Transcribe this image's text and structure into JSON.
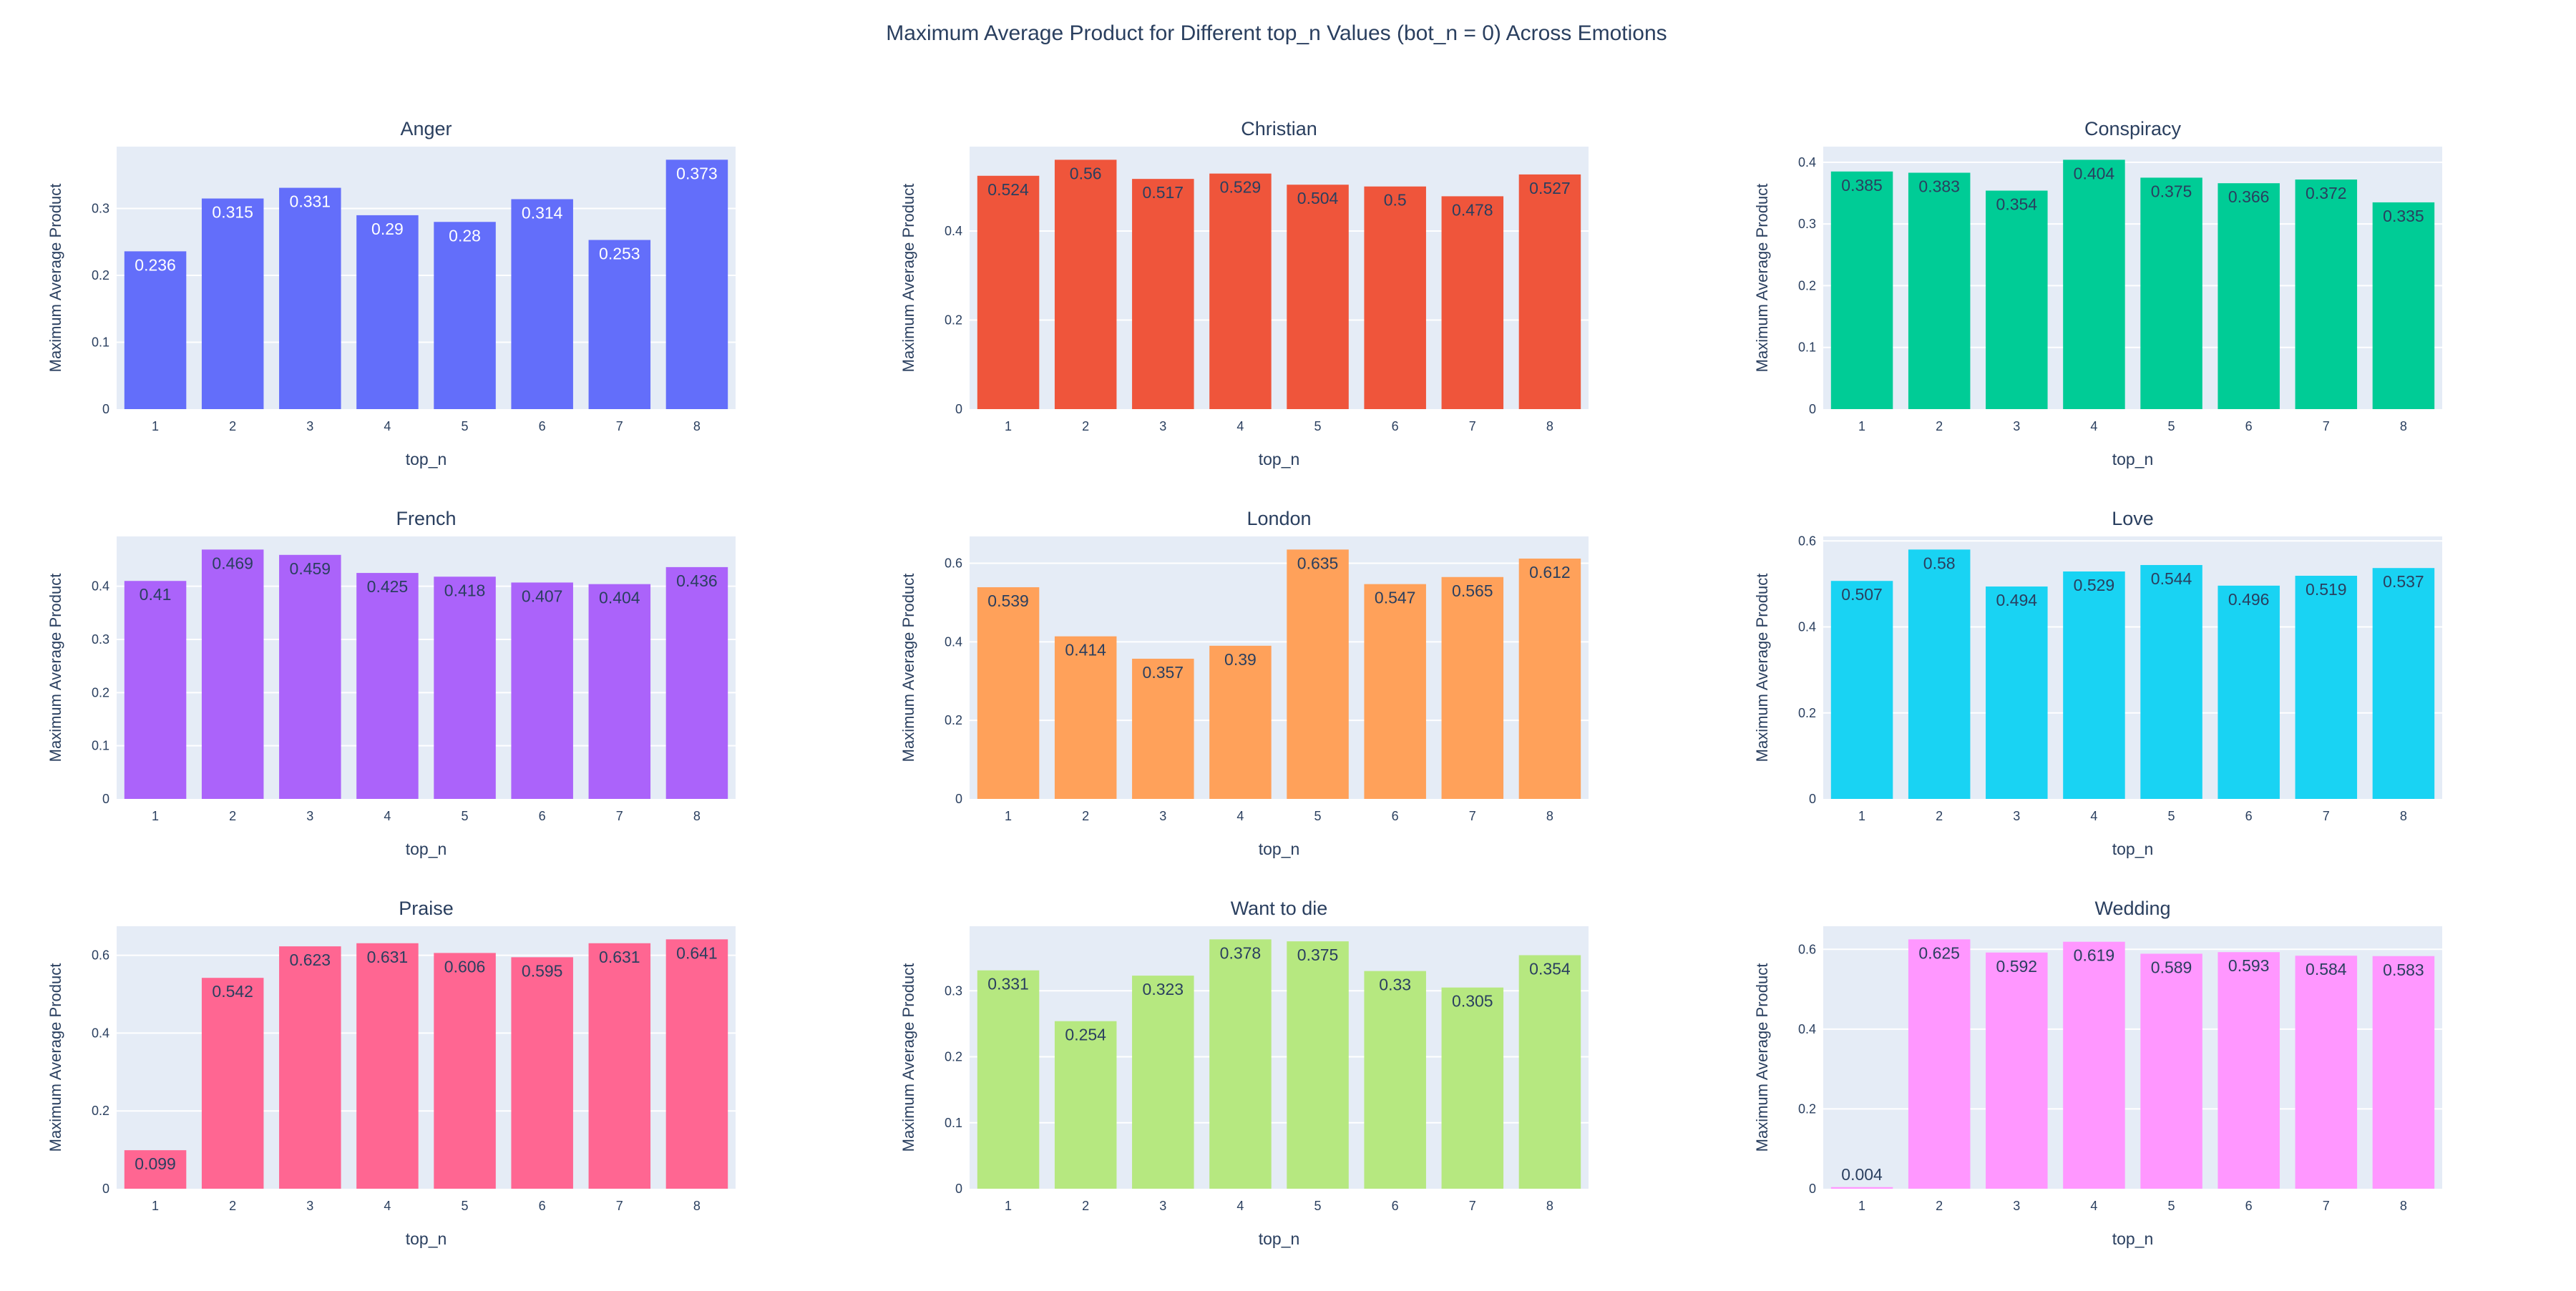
{
  "title": "Maximum Average Product for Different top_n Values (bot_n = 0) Across Emotions",
  "chart_data": [
    {
      "type": "bar",
      "title": "Anger",
      "xlabel": "top_n",
      "ylabel": "Maximum Average Product",
      "color": "#636EFA",
      "label_color": "#ffffff",
      "categories": [
        "1",
        "2",
        "3",
        "4",
        "5",
        "6",
        "7",
        "8"
      ],
      "values": [
        0.236,
        0.315,
        0.331,
        0.29,
        0.28,
        0.314,
        0.253,
        0.373
      ],
      "labels": [
        "0.236",
        "0.315",
        "0.331",
        "0.29",
        "0.28",
        "0.314",
        "0.253",
        "0.373"
      ],
      "ylim": [
        0,
        0.3926
      ],
      "yticks": [
        0,
        0.1,
        0.2,
        0.3
      ],
      "ytick_labels": [
        "0",
        "0.1",
        "0.2",
        "0.3"
      ]
    },
    {
      "type": "bar",
      "title": "Christian",
      "xlabel": "top_n",
      "ylabel": "Maximum Average Product",
      "color": "#EF553B",
      "label_color": "#2a3f5f",
      "categories": [
        "1",
        "2",
        "3",
        "4",
        "5",
        "6",
        "7",
        "8"
      ],
      "values": [
        0.524,
        0.56,
        0.517,
        0.529,
        0.504,
        0.5,
        0.478,
        0.527
      ],
      "labels": [
        "0.524",
        "0.56",
        "0.517",
        "0.529",
        "0.504",
        "0.5",
        "0.478",
        "0.527"
      ],
      "ylim": [
        0,
        0.5895
      ],
      "yticks": [
        0,
        0.2,
        0.4
      ],
      "ytick_labels": [
        "0",
        "0.2",
        "0.4"
      ]
    },
    {
      "type": "bar",
      "title": "Conspiracy",
      "xlabel": "top_n",
      "ylabel": "Maximum Average Product",
      "color": "#00CC96",
      "label_color": "#2a3f5f",
      "categories": [
        "1",
        "2",
        "3",
        "4",
        "5",
        "6",
        "7",
        "8"
      ],
      "values": [
        0.385,
        0.383,
        0.354,
        0.404,
        0.375,
        0.366,
        0.372,
        0.335
      ],
      "labels": [
        "0.385",
        "0.383",
        "0.354",
        "0.404",
        "0.375",
        "0.366",
        "0.372",
        "0.335"
      ],
      "ylim": [
        0,
        0.4253
      ],
      "yticks": [
        0,
        0.1,
        0.2,
        0.3,
        0.4
      ],
      "ytick_labels": [
        "0",
        "0.1",
        "0.2",
        "0.3",
        "0.4"
      ]
    },
    {
      "type": "bar",
      "title": "French",
      "xlabel": "top_n",
      "ylabel": "Maximum Average Product",
      "color": "#AB63FA",
      "label_color": "#2a3f5f",
      "categories": [
        "1",
        "2",
        "3",
        "4",
        "5",
        "6",
        "7",
        "8"
      ],
      "values": [
        0.41,
        0.469,
        0.459,
        0.425,
        0.418,
        0.407,
        0.404,
        0.436
      ],
      "labels": [
        "0.41",
        "0.469",
        "0.459",
        "0.425",
        "0.418",
        "0.407",
        "0.404",
        "0.436"
      ],
      "ylim": [
        0,
        0.4937
      ],
      "yticks": [
        0,
        0.1,
        0.2,
        0.3,
        0.4
      ],
      "ytick_labels": [
        "0",
        "0.1",
        "0.2",
        "0.3",
        "0.4"
      ]
    },
    {
      "type": "bar",
      "title": "London",
      "xlabel": "top_n",
      "ylabel": "Maximum Average Product",
      "color": "#FFA15A",
      "label_color": "#2a3f5f",
      "categories": [
        "1",
        "2",
        "3",
        "4",
        "5",
        "6",
        "7",
        "8"
      ],
      "values": [
        0.539,
        0.414,
        0.357,
        0.39,
        0.635,
        0.547,
        0.565,
        0.612
      ],
      "labels": [
        "0.539",
        "0.414",
        "0.357",
        "0.39",
        "0.635",
        "0.547",
        "0.565",
        "0.612"
      ],
      "ylim": [
        0,
        0.6684
      ],
      "yticks": [
        0,
        0.2,
        0.4,
        0.6
      ],
      "ytick_labels": [
        "0",
        "0.2",
        "0.4",
        "0.6"
      ]
    },
    {
      "type": "bar",
      "title": "Love",
      "xlabel": "top_n",
      "ylabel": "Maximum Average Product",
      "color": "#19D3F3",
      "label_color": "#2a3f5f",
      "categories": [
        "1",
        "2",
        "3",
        "4",
        "5",
        "6",
        "7",
        "8"
      ],
      "values": [
        0.507,
        0.58,
        0.494,
        0.529,
        0.544,
        0.496,
        0.519,
        0.537
      ],
      "labels": [
        "0.507",
        "0.58",
        "0.494",
        "0.529",
        "0.544",
        "0.496",
        "0.519",
        "0.537"
      ],
      "ylim": [
        0,
        0.6105
      ],
      "yticks": [
        0,
        0.2,
        0.4,
        0.6
      ],
      "ytick_labels": [
        "0",
        "0.2",
        "0.4",
        "0.6"
      ]
    },
    {
      "type": "bar",
      "title": "Praise",
      "xlabel": "top_n",
      "ylabel": "Maximum Average Product",
      "color": "#FF6692",
      "label_color": "#2a3f5f",
      "categories": [
        "1",
        "2",
        "3",
        "4",
        "5",
        "6",
        "7",
        "8"
      ],
      "values": [
        0.099,
        0.542,
        0.623,
        0.631,
        0.606,
        0.595,
        0.631,
        0.641
      ],
      "labels": [
        "0.099",
        "0.542",
        "0.623",
        "0.631",
        "0.606",
        "0.595",
        "0.631",
        "0.641"
      ],
      "ylim": [
        0,
        0.6747
      ],
      "yticks": [
        0,
        0.2,
        0.4,
        0.6
      ],
      "ytick_labels": [
        "0",
        "0.2",
        "0.4",
        "0.6"
      ]
    },
    {
      "type": "bar",
      "title": "Want to die",
      "xlabel": "top_n",
      "ylabel": "Maximum Average Product",
      "color": "#B6E880",
      "label_color": "#2a3f5f",
      "categories": [
        "1",
        "2",
        "3",
        "4",
        "5",
        "6",
        "7",
        "8"
      ],
      "values": [
        0.331,
        0.254,
        0.323,
        0.378,
        0.375,
        0.33,
        0.305,
        0.354
      ],
      "labels": [
        "0.331",
        "0.254",
        "0.323",
        "0.378",
        "0.375",
        "0.33",
        "0.305",
        "0.354"
      ],
      "ylim": [
        0,
        0.3979
      ],
      "yticks": [
        0,
        0.1,
        0.2,
        0.3
      ],
      "ytick_labels": [
        "0",
        "0.1",
        "0.2",
        "0.3"
      ]
    },
    {
      "type": "bar",
      "title": "Wedding",
      "xlabel": "top_n",
      "ylabel": "Maximum Average Product",
      "color": "#FF97FF",
      "label_color": "#2a3f5f",
      "categories": [
        "1",
        "2",
        "3",
        "4",
        "5",
        "6",
        "7",
        "8"
      ],
      "values": [
        0.004,
        0.625,
        0.592,
        0.619,
        0.589,
        0.593,
        0.584,
        0.583
      ],
      "labels": [
        "0.004",
        "0.625",
        "0.592",
        "0.619",
        "0.589",
        "0.593",
        "0.584",
        "0.583"
      ],
      "ylim": [
        0,
        0.6579
      ],
      "yticks": [
        0,
        0.2,
        0.4,
        0.6
      ],
      "ytick_labels": [
        "0",
        "0.2",
        "0.4",
        "0.6"
      ]
    }
  ]
}
